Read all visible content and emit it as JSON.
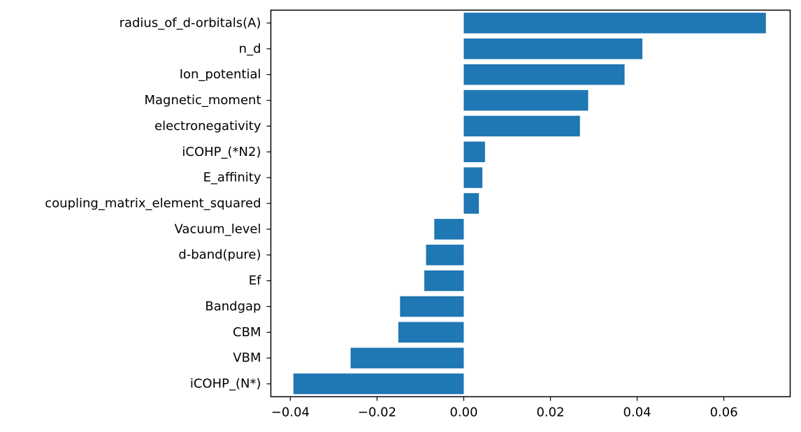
{
  "chart_data": {
    "type": "bar",
    "orientation": "horizontal",
    "title": "",
    "xlabel": "",
    "ylabel": "",
    "categories": [
      "radius_of_d-orbitals(A)",
      "n_d",
      "Ion_potential",
      "Magnetic_moment",
      "electronegativity",
      "iCOHP_(*N2)",
      "E_affinity",
      "coupling_matrix_element_squared",
      "Vacuum_level",
      "d-band(pure)",
      "Ef",
      "Bandgap",
      "CBM",
      "VBM",
      "iCOHP_(N*)"
    ],
    "values": [
      0.0697,
      0.0412,
      0.0371,
      0.0287,
      0.0268,
      0.0049,
      0.0043,
      0.0035,
      -0.0068,
      -0.0087,
      -0.0091,
      -0.0147,
      -0.0151,
      -0.0261,
      -0.0393
    ],
    "xlim": [
      -0.0445,
      0.0753
    ],
    "xticks": [
      -0.04,
      -0.02,
      0.0,
      0.02,
      0.04,
      0.06
    ],
    "xtick_labels": [
      "−0.04",
      "−0.02",
      "0.00",
      "0.02",
      "0.04",
      "0.06"
    ],
    "grid": false,
    "legend": "none",
    "bar_color": "#1f77b4"
  }
}
